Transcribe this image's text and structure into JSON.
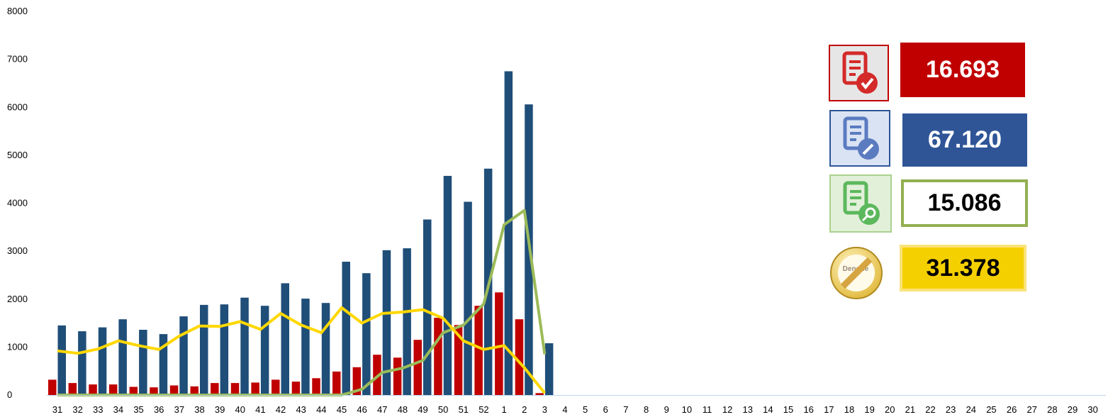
{
  "chart_data": {
    "type": "bar",
    "categories": [
      "31",
      "32",
      "33",
      "34",
      "35",
      "36",
      "37",
      "38",
      "39",
      "40",
      "41",
      "42",
      "43",
      "44",
      "45",
      "46",
      "47",
      "48",
      "49",
      "50",
      "51",
      "52",
      "1",
      "2",
      "3",
      "4",
      "5",
      "6",
      "7",
      "8",
      "9",
      "10",
      "11",
      "12",
      "13",
      "14",
      "15",
      "16",
      "17",
      "18",
      "19",
      "20",
      "21",
      "22",
      "23",
      "24",
      "25",
      "26",
      "27",
      "28",
      "29",
      "30"
    ],
    "ylim": [
      0,
      8000
    ],
    "yticks": [
      0,
      1000,
      2000,
      3000,
      4000,
      5000,
      6000,
      7000,
      8000
    ],
    "grid": false,
    "legend": "none",
    "series": [
      {
        "type": "bar",
        "color": "#C00000",
        "values": [
          320,
          250,
          220,
          220,
          170,
          160,
          200,
          180,
          250,
          250,
          260,
          320,
          280,
          350,
          490,
          580,
          840,
          780,
          1150,
          1610,
          1460,
          1860,
          2140,
          1580,
          40,
          null,
          null,
          null,
          null,
          null,
          null,
          null,
          null,
          null,
          null,
          null,
          null,
          null,
          null,
          null,
          null,
          null,
          null,
          null,
          null,
          null,
          null,
          null,
          null,
          null,
          null,
          null
        ]
      },
      {
        "type": "bar",
        "color": "#1F4E79",
        "values": [
          1450,
          1330,
          1410,
          1580,
          1360,
          1270,
          1640,
          1880,
          1890,
          2030,
          1860,
          2330,
          2010,
          1920,
          2780,
          2540,
          3020,
          3060,
          3660,
          4570,
          4030,
          4720,
          6750,
          6060,
          1080,
          null,
          null,
          null,
          null,
          null,
          null,
          null,
          null,
          null,
          null,
          null,
          null,
          null,
          null,
          null,
          null,
          null,
          null,
          null,
          null,
          null,
          null,
          null,
          null,
          null,
          null,
          null
        ]
      },
      {
        "type": "line",
        "color": "#9BBB59",
        "values": [
          0,
          0,
          0,
          0,
          0,
          0,
          0,
          0,
          0,
          0,
          0,
          0,
          0,
          0,
          0,
          120,
          470,
          560,
          720,
          1300,
          1460,
          1900,
          3550,
          3850,
          850,
          null,
          null,
          null,
          null,
          null,
          null,
          null,
          null,
          null,
          null,
          null,
          null,
          null,
          null,
          null,
          null,
          null,
          null,
          null,
          null,
          null,
          null,
          null,
          null,
          null,
          null,
          null
        ]
      },
      {
        "type": "line",
        "color": "#FFD700",
        "values": [
          920,
          870,
          960,
          1130,
          1030,
          950,
          1230,
          1440,
          1430,
          1530,
          1370,
          1700,
          1460,
          1300,
          1820,
          1500,
          1700,
          1730,
          1780,
          1600,
          1130,
          950,
          1030,
          570,
          40,
          null,
          null,
          null,
          null,
          null,
          null,
          null,
          null,
          null,
          null,
          null,
          null,
          null,
          null,
          null,
          null,
          null,
          null,
          null,
          null,
          null,
          null,
          null,
          null,
          null,
          null,
          null
        ]
      }
    ]
  },
  "cards": [
    {
      "icon": "report-check-icon",
      "value": "16.693",
      "color": "#C00000"
    },
    {
      "icon": "report-edit-icon",
      "value": "67.120",
      "color": "#2F5597"
    },
    {
      "icon": "report-search-icon",
      "value": "15.086",
      "color": "#92C83E"
    },
    {
      "icon": "dengue-prohibited-icon",
      "icon_text": "Dengue",
      "value": "31.378",
      "color": "#F5D000"
    }
  ]
}
